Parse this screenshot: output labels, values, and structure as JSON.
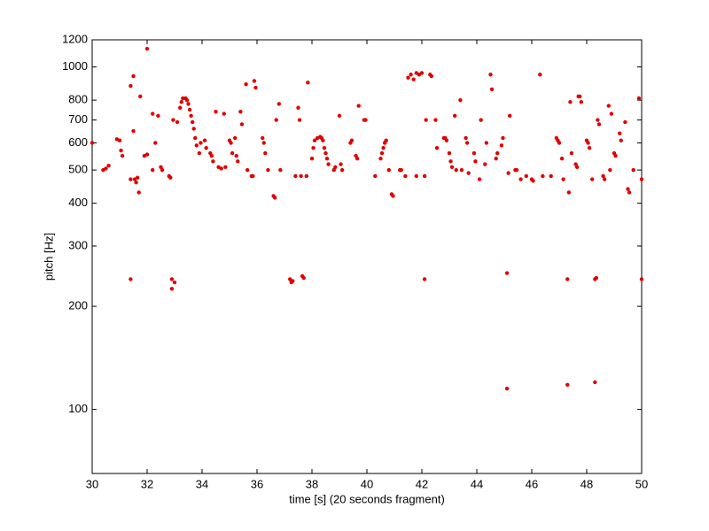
{
  "chart_data": {
    "type": "scatter",
    "xlabel": "time [s] (20 seconds fragment)",
    "ylabel": "pitch [Hz]",
    "xlim": [
      30,
      50
    ],
    "xticks": [
      30,
      32,
      34,
      36,
      38,
      40,
      42,
      44,
      46,
      48,
      50
    ],
    "ylim": [
      65,
      1200
    ],
    "yticks": [
      100,
      200,
      300,
      400,
      500,
      600,
      700,
      800,
      1000,
      1200
    ],
    "ylog": true,
    "grid": false,
    "series": [
      {
        "color": "#e00000",
        "x": [
          30.0,
          30.4,
          30.5,
          30.6,
          30.9,
          31.0,
          31.05,
          31.1,
          31.4,
          31.4,
          31.4,
          31.5,
          31.5,
          31.55,
          31.6,
          31.65,
          31.7,
          31.75,
          31.9,
          32.0,
          32.0,
          32.2,
          32.2,
          32.3,
          32.4,
          32.5,
          32.55,
          32.8,
          32.85,
          32.9,
          32.9,
          33.0,
          32.95,
          33.1,
          33.2,
          33.25,
          33.3,
          33.4,
          33.45,
          33.5,
          33.55,
          33.6,
          33.65,
          33.7,
          33.75,
          33.8,
          33.9,
          33.95,
          34.1,
          34.15,
          34.3,
          34.35,
          34.4,
          34.5,
          34.6,
          34.7,
          34.8,
          34.85,
          35.0,
          35.05,
          35.1,
          35.2,
          35.25,
          35.3,
          35.4,
          35.45,
          35.6,
          35.65,
          35.8,
          35.85,
          35.9,
          35.95,
          36.2,
          36.25,
          36.3,
          36.4,
          36.6,
          36.65,
          36.7,
          36.8,
          36.85,
          37.2,
          37.25,
          37.3,
          37.4,
          37.5,
          37.55,
          37.6,
          37.65,
          37.7,
          37.8,
          37.85,
          38.0,
          38.05,
          38.1,
          38.2,
          38.3,
          38.35,
          38.4,
          38.45,
          38.5,
          38.55,
          38.6,
          38.8,
          38.85,
          39.0,
          39.05,
          39.1,
          39.4,
          39.45,
          39.6,
          39.65,
          39.7,
          39.9,
          39.95,
          40.3,
          40.5,
          40.55,
          40.6,
          40.65,
          40.7,
          40.8,
          40.9,
          40.95,
          41.2,
          41.25,
          41.4,
          41.5,
          41.6,
          41.7,
          41.8,
          41.8,
          41.9,
          42.0,
          42.1,
          42.1,
          42.15,
          42.3,
          42.35,
          42.5,
          42.55,
          42.8,
          42.85,
          42.9,
          43.0,
          43.05,
          43.1,
          43.2,
          43.25,
          43.4,
          43.45,
          43.6,
          43.65,
          43.7,
          43.9,
          43.95,
          44.1,
          44.15,
          44.3,
          44.35,
          44.5,
          44.55,
          44.7,
          44.75,
          44.9,
          44.95,
          45.1,
          45.1,
          45.15,
          45.2,
          45.4,
          45.45,
          45.6,
          45.8,
          46.0,
          46.05,
          46.3,
          46.4,
          46.7,
          46.9,
          46.95,
          47.0,
          47.1,
          47.15,
          47.3,
          47.3,
          47.35,
          47.4,
          47.45,
          47.6,
          47.65,
          47.7,
          47.75,
          47.8,
          48.0,
          48.05,
          48.1,
          48.2,
          48.3,
          48.35,
          48.3,
          48.4,
          48.45,
          48.6,
          48.65,
          48.8,
          48.85,
          48.9,
          49.0,
          49.05,
          49.2,
          49.25,
          49.4,
          49.5,
          49.55,
          49.7,
          49.9,
          50.0,
          50.0
        ],
        "values": [
          600,
          500,
          505,
          515,
          615,
          610,
          570,
          550,
          240,
          880,
          470,
          940,
          650,
          470,
          460,
          475,
          430,
          820,
          550,
          555,
          1130,
          730,
          500,
          600,
          720,
          510,
          500,
          480,
          475,
          240,
          225,
          235,
          700,
          690,
          760,
          790,
          810,
          810,
          800,
          780,
          750,
          720,
          690,
          660,
          620,
          590,
          560,
          600,
          610,
          580,
          560,
          550,
          530,
          740,
          510,
          505,
          730,
          510,
          610,
          600,
          560,
          620,
          550,
          530,
          740,
          680,
          890,
          500,
          480,
          480,
          910,
          870,
          620,
          600,
          560,
          500,
          420,
          415,
          700,
          780,
          500,
          240,
          235,
          237,
          480,
          760,
          700,
          480,
          245,
          242,
          480,
          900,
          540,
          580,
          610,
          620,
          625,
          620,
          610,
          580,
          560,
          540,
          520,
          500,
          510,
          720,
          520,
          500,
          600,
          610,
          550,
          540,
          770,
          700,
          700,
          480,
          540,
          560,
          580,
          600,
          610,
          500,
          425,
          420,
          500,
          500,
          480,
          930,
          950,
          920,
          960,
          480,
          950,
          960,
          240,
          480,
          700,
          950,
          940,
          700,
          580,
          620,
          620,
          610,
          560,
          530,
          510,
          720,
          500,
          800,
          500,
          620,
          600,
          490,
          560,
          530,
          470,
          700,
          520,
          600,
          950,
          860,
          540,
          560,
          590,
          620,
          250,
          115,
          490,
          720,
          500,
          500,
          470,
          480,
          470,
          465,
          950,
          480,
          480,
          620,
          610,
          600,
          540,
          470,
          240,
          118,
          430,
          790,
          560,
          520,
          510,
          820,
          820,
          790,
          610,
          600,
          580,
          470,
          240,
          242,
          120,
          700,
          680,
          480,
          470,
          770,
          500,
          730,
          560,
          550,
          640,
          610,
          690,
          440,
          430,
          500,
          810,
          240,
          470
        ]
      }
    ]
  }
}
